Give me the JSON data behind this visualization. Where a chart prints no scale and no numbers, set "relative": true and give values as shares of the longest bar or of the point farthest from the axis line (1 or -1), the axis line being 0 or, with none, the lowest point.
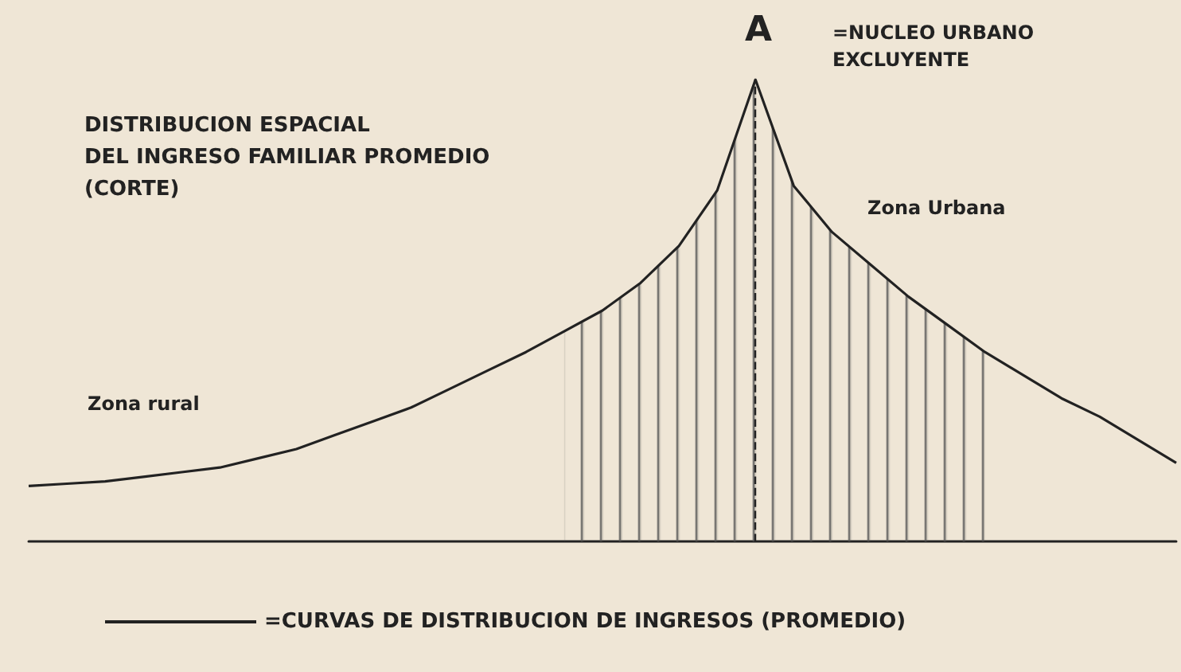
{
  "chart_data": {
    "type": "line",
    "relative": true,
    "title": "DISTRIBUCION ESPACIAL\nDEL INGRESO FAMILIAR PROMEDIO\n(CORTE)",
    "categories": [
      null,
      null,
      null,
      null,
      null,
      null,
      null,
      null,
      null,
      null,
      null,
      null,
      null,
      null,
      null,
      null,
      null,
      null,
      null,
      null,
      null,
      null,
      null,
      null,
      null,
      null,
      null,
      null,
      null,
      null,
      null
    ],
    "grid": false,
    "legend": "bottom",
    "marker": "none",
    "line_style": "solid",
    "series": [
      {
        "name": "=CURVAS DE DISTRIBUCION DE INGRESOS (PROMEDIO)",
        "color": "#222222",
        "values": [
          0.12,
          0.125,
          0.13,
          0.14,
          0.15,
          0.16,
          0.18,
          0.2,
          0.23,
          0.26,
          0.29,
          0.33,
          0.37,
          0.41,
          0.455,
          0.5,
          0.56,
          0.64,
          0.76,
          1,
          0.77,
          0.67,
          0.6,
          0.53,
          0.47,
          0.41,
          0.36,
          0.31,
          0.27,
          0.22,
          0.17
        ]
      },
      {
        "type": "area",
        "color": "#555555",
        "values": [
          null,
          null,
          null,
          null,
          null,
          null,
          null,
          null,
          null,
          null,
          null,
          null,
          null,
          null,
          0.455,
          0.5,
          0.56,
          0.64,
          0.76,
          1,
          0.77,
          0.67,
          0.6,
          0.53,
          0.47,
          0.41,
          null,
          null,
          null,
          null,
          null
        ]
      }
    ],
    "annotations": [
      "A",
      "=NUCLEO URBANO\nEXCLUYENTE",
      "Zona Urbana",
      "Zona rural"
    ]
  }
}
